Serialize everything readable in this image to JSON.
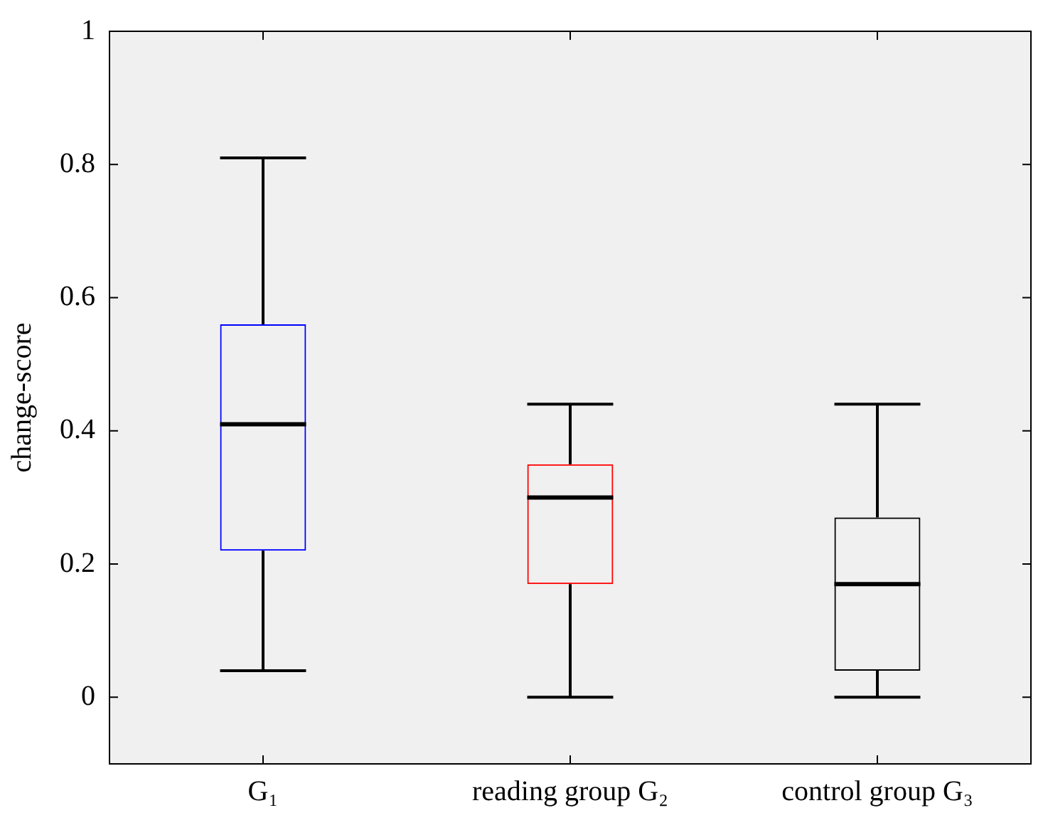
{
  "chart_data": {
    "type": "box",
    "ylabel": "change-score",
    "categories": [
      "G₁",
      "reading group G₂",
      "control group G₃"
    ],
    "boxes": [
      {
        "low": 0.04,
        "q1": 0.22,
        "median": 0.41,
        "q3": 0.56,
        "high": 0.81
      },
      {
        "low": 0,
        "q1": 0.17,
        "median": 0.3,
        "q3": 0.35,
        "high": 0.44
      },
      {
        "low": 0,
        "q1": 0.04,
        "median": 0.17,
        "q3": 0.27,
        "high": 0.44
      }
    ],
    "colors": [
      "#0000ff",
      "#ff0000",
      "#000000"
    ],
    "ylim": [
      -0.1,
      1
    ],
    "yticks": [
      0,
      0.2,
      0.4,
      0.6,
      0.8,
      1
    ],
    "grid": false,
    "legend": false
  }
}
